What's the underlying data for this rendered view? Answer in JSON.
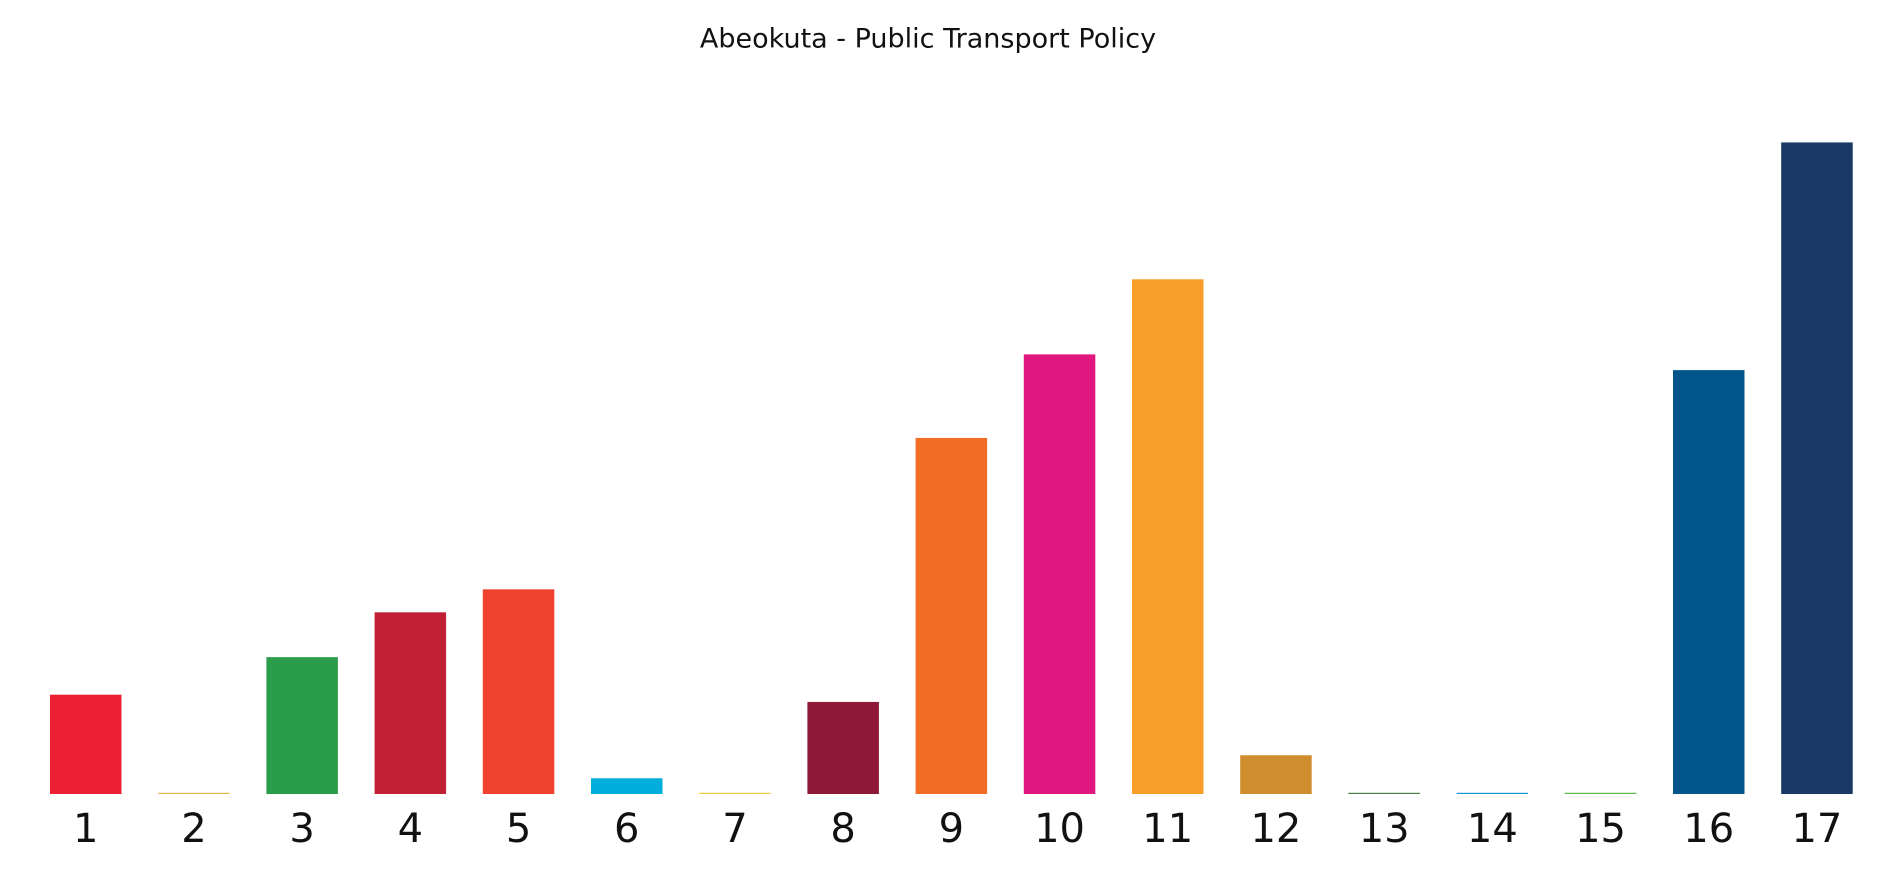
{
  "chart_data": {
    "type": "bar",
    "title": "Abeokuta - Public Transport Policy",
    "categories": [
      "1",
      "2",
      "3",
      "4",
      "5",
      "6",
      "7",
      "8",
      "9",
      "10",
      "11",
      "12",
      "13",
      "14",
      "15",
      "16",
      "17"
    ],
    "values": [
      82,
      1,
      113,
      150,
      169,
      13,
      1,
      76,
      294,
      363,
      425,
      32,
      1,
      1,
      1,
      350,
      538
    ],
    "colors": [
      "#ec1f33",
      "#e8b94f",
      "#2a9c4a",
      "#c11f33",
      "#ef412d",
      "#00aedb",
      "#f5c940",
      "#8e1838",
      "#f36d25",
      "#e0177f",
      "#f99d29",
      "#cf8d2e",
      "#4c7b4a",
      "#1a97d3",
      "#5bba47",
      "#02558b",
      "#1a3866"
    ],
    "ylim": [
      0,
      540
    ]
  }
}
